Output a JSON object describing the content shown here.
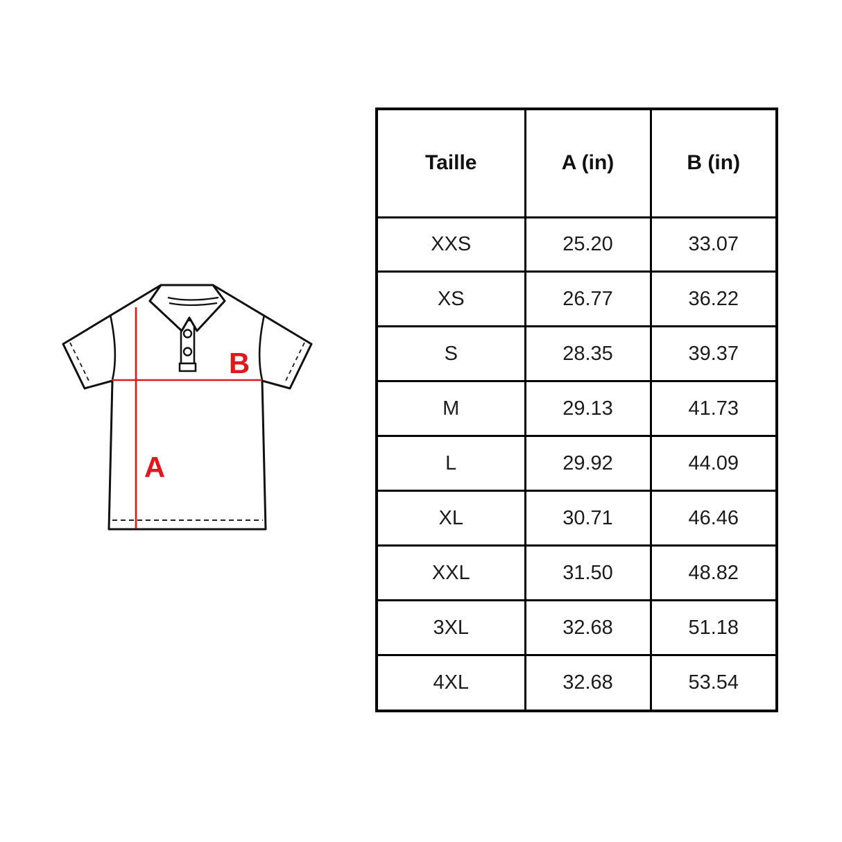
{
  "page": {
    "background_color": "#ffffff"
  },
  "diagram": {
    "description": "polo-shirt measurement diagram",
    "label_a": "A",
    "label_b": "B",
    "accent_color": "#e0181d",
    "outline_color": "#111111"
  },
  "table": {
    "columns": [
      "Taille",
      "A (in)",
      "B (in)"
    ],
    "rows": [
      [
        "XXS",
        "25.20",
        "33.07"
      ],
      [
        "XS",
        "26.77",
        "36.22"
      ],
      [
        "S",
        "28.35",
        "39.37"
      ],
      [
        "M",
        "29.13",
        "41.73"
      ],
      [
        "L",
        "29.92",
        "44.09"
      ],
      [
        "XL",
        "30.71",
        "46.46"
      ],
      [
        "XXL",
        "31.50",
        "48.82"
      ],
      [
        "3XL",
        "32.68",
        "51.18"
      ],
      [
        "4XL",
        "32.68",
        "53.54"
      ]
    ]
  }
}
